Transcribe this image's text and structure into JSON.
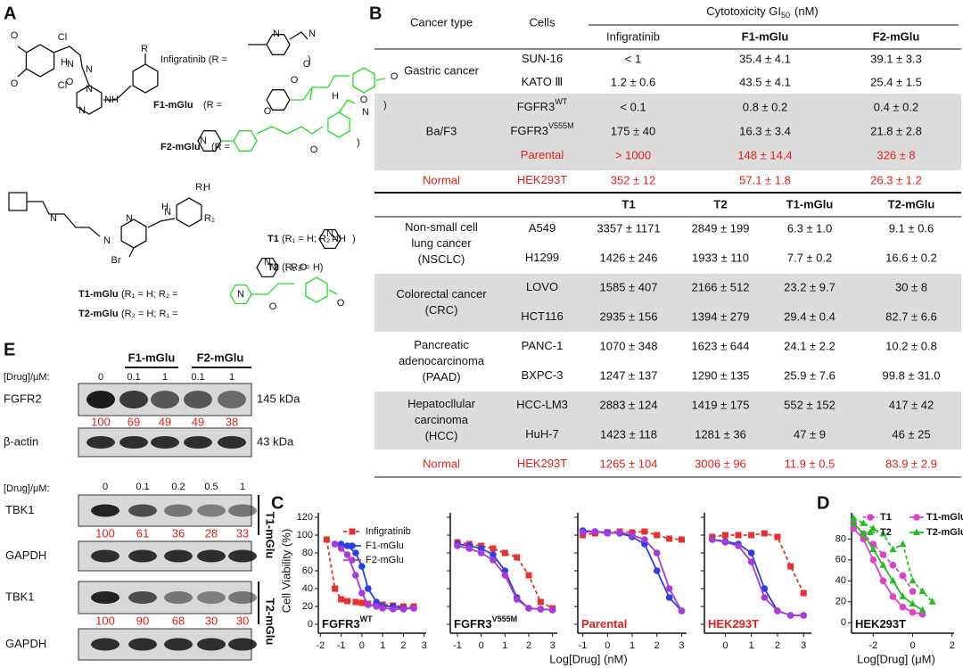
{
  "panel_labels": [
    "A",
    "B",
    "C",
    "D",
    "E"
  ],
  "structures": {
    "fragments": [
      {
        "text": "Infigratinib (R =",
        "bold": false
      },
      {
        "text": ")",
        "bold": false
      },
      {
        "text": "F1-mGlu",
        "bold": true
      },
      {
        "text": "(R =",
        "bold": false
      },
      {
        "text": ")",
        "bold": false
      },
      {
        "text": "F2-mGlu",
        "bold": true
      },
      {
        "text": "(R =",
        "bold": false
      },
      {
        "text": ")",
        "bold": false
      },
      {
        "text": "T1",
        "bold": true
      },
      {
        "text": "(R₁ = H; R₂ =",
        "bold": false
      },
      {
        "text": ")",
        "bold": false
      },
      {
        "text": "T2",
        "bold": true
      },
      {
        "text": "(R₁ =",
        "bold": false
      },
      {
        "text": "; R₂ = H)",
        "bold": false
      },
      {
        "text": "T1-mGlu",
        "bold": true
      },
      {
        "text": "(R₁ = H; R₂ =",
        "bold": false
      },
      {
        "text": "T2-mGlu",
        "bold": true
      },
      {
        "text": "(R₂ = H; R₁ =",
        "bold": false
      }
    ],
    "atoms": [
      "O",
      "Cl",
      "O",
      "Cl",
      "H",
      "N",
      "N",
      "O",
      "N",
      "N",
      "NH",
      "R",
      "N",
      "N",
      "O",
      "O",
      "O",
      "O",
      "O",
      "N",
      "O",
      "H",
      "N",
      "H",
      "N",
      "N",
      "N",
      "Br",
      "H",
      "N",
      "R₁",
      "R₂",
      "N",
      "NH",
      "N",
      "N",
      "N",
      "O",
      "O",
      "O"
    ]
  },
  "table": {
    "header": {
      "cancer_type": "Cancer type",
      "cells": "Cells",
      "cytotoxicity": "Cytotoxicity GI",
      "cytotoxicity_sub": "50",
      "unit": "(nM)"
    },
    "section1": {
      "columns": [
        "Infigratinib",
        "F1-mGlu",
        "F2-mGlu"
      ],
      "columns_bold": [
        false,
        true,
        true
      ],
      "groups": [
        {
          "name": [
            "Gastric cancer"
          ],
          "shaded": false,
          "red": false,
          "rows": [
            {
              "cell": "SUN-16",
              "values": [
                "< 1",
                "35.4 ± 4.1",
                "39.1 ± 3.3"
              ]
            },
            {
              "cell": "KATO Ⅲ",
              "values": [
                "1.2 ± 0.6",
                "43.5 ± 4.1",
                "25.4 ± 1.5"
              ]
            }
          ]
        },
        {
          "name": [
            "Ba/F3"
          ],
          "shaded": true,
          "red": false,
          "rows": [
            {
              "cell": "FGFR3",
              "cell_sup": "WT",
              "values": [
                "< 0.1",
                "0.8 ± 0.2",
                "0.4 ± 0.2"
              ]
            },
            {
              "cell": "FGFR3",
              "cell_sup": "V555M",
              "values": [
                "175 ± 40",
                "16.3 ± 3.4",
                "21.8 ± 2.8"
              ]
            },
            {
              "cell": "Parental",
              "red": true,
              "values": [
                "> 1000",
                "148 ± 14.4",
                "326 ± 8"
              ]
            }
          ]
        },
        {
          "name": [
            "Normal"
          ],
          "shaded": false,
          "red": true,
          "rows": [
            {
              "cell": "HEK293T",
              "red": true,
              "values": [
                "352 ± 12",
                "57.1 ± 1.8",
                "26.3 ± 1.2"
              ]
            }
          ]
        }
      ]
    },
    "section2": {
      "columns": [
        "T1",
        "T2",
        "T1-mGlu",
        "T2-mGlu"
      ],
      "columns_bold": [
        true,
        true,
        true,
        true
      ],
      "groups": [
        {
          "name": [
            "Non-small cell",
            "lung cancer",
            "(NSCLC)"
          ],
          "shaded": false,
          "red": false,
          "rows": [
            {
              "cell": "A549",
              "values": [
                "3357 ± 1171",
                "2849 ± 199",
                "6.3 ± 1.0",
                "9.1 ± 0.6"
              ]
            },
            {
              "cell": "H1299",
              "values": [
                "1426 ± 246",
                "1933 ± 110",
                "7.7 ± 0.2",
                "16.6 ± 0.2"
              ]
            }
          ]
        },
        {
          "name": [
            "Colorectal cancer",
            "(CRC)"
          ],
          "shaded": true,
          "red": false,
          "rows": [
            {
              "cell": "LOVO",
              "values": [
                "1585 ± 407",
                "2166 ± 512",
                "23.2 ± 9.7",
                "30 ± 8"
              ]
            },
            {
              "cell": "HCT116",
              "values": [
                "2935 ± 156",
                "1394 ± 279",
                "29.4 ± 0.4",
                "82.7 ± 6.6"
              ]
            }
          ]
        },
        {
          "name": [
            "Pancreatic",
            "adenocarcinoma",
            "(PAAD)"
          ],
          "shaded": false,
          "red": false,
          "rows": [
            {
              "cell": "PANC-1",
              "values": [
                "1070 ± 348",
                "1623 ± 644",
                "24.1 ± 2.2",
                "10.2 ± 0.8"
              ]
            },
            {
              "cell": "BXPC-3",
              "values": [
                "1247 ± 137",
                "1290 ± 135",
                "25.9 ± 7.6",
                "99.8 ± 31.0"
              ]
            }
          ]
        },
        {
          "name": [
            "Hepatocllular",
            "carcinoma",
            "(HCC)"
          ],
          "shaded": true,
          "red": false,
          "rows": [
            {
              "cell": "HCC-LM3",
              "values": [
                "2883 ± 124",
                "1419 ± 175",
                "552 ± 152",
                "417 ± 42"
              ]
            },
            {
              "cell": "HuH-7",
              "values": [
                "1423 ± 118",
                "1281 ± 36",
                "47 ± 9",
                "46 ± 25"
              ]
            }
          ]
        },
        {
          "name": [
            "Normal"
          ],
          "shaded": false,
          "red": true,
          "rows": [
            {
              "cell": "HEK293T",
              "red": true,
              "values": [
                "1265 ± 104",
                "3006 ± 96",
                "11.9 ± 0.5",
                "83.9 ± 2.9"
              ]
            }
          ]
        }
      ]
    }
  },
  "viability": {
    "y_label": "Cell Viability (%)",
    "x_label": "Log[Drug] (nM)",
    "ylim": [
      -10,
      125
    ],
    "yticks": [
      0,
      20,
      40,
      60,
      80,
      100,
      120
    ],
    "legend": [
      {
        "name": "Infigratinib",
        "color": "#e83030",
        "dashed": true,
        "marker": "square"
      },
      {
        "name": "F1-mGlu",
        "color": "#2a3ee8",
        "dashed": false,
        "marker": "circle"
      },
      {
        "name": "F2-mGlu",
        "color": "#a83ad8",
        "dashed": false,
        "marker": "circle"
      }
    ],
    "plots": [
      {
        "label": "FGFR3",
        "label_sup": "WT",
        "red": false,
        "xlim": [
          -2.1,
          3.1
        ],
        "xticks": [
          -2,
          -1,
          0,
          1,
          2,
          3
        ],
        "x": [
          -1.7,
          -1.3,
          -1,
          -0.7,
          -0.3,
          0,
          0.3,
          0.7,
          1,
          1.5,
          2,
          2.5
        ],
        "series": [
          {
            "values": [
              95,
              40,
              28,
              26,
              25,
              24,
              23,
              22,
              22,
              21,
              20,
              20
            ]
          },
          {
            "values": [
              null,
              90,
              90,
              88,
              80,
              65,
              40,
              25,
              20,
              20,
              18,
              18
            ]
          },
          {
            "values": [
              null,
              90,
              85,
              78,
              55,
              35,
              22,
              20,
              18,
              17,
              17,
              18
            ]
          }
        ]
      },
      {
        "label": "FGFR3",
        "label_sup": "V555M",
        "red": false,
        "xlim": [
          -1.3,
          3.2
        ],
        "xticks": [
          -1,
          0,
          1,
          2,
          3
        ],
        "x": [
          -1,
          -0.5,
          0,
          0.5,
          1,
          1.5,
          2,
          2.5,
          3
        ],
        "series": [
          {
            "values": [
              92,
              90,
              88,
              85,
              80,
              75,
              55,
              25,
              18
            ]
          },
          {
            "values": [
              90,
              88,
              85,
              78,
              60,
              30,
              18,
              17,
              16
            ]
          },
          {
            "values": [
              88,
              85,
              80,
              72,
              55,
              28,
              18,
              17,
              16
            ]
          }
        ]
      },
      {
        "label": "Parental",
        "red": true,
        "xlim": [
          -1.2,
          3.2
        ],
        "xticks": [
          -1,
          0,
          1,
          2,
          3
        ],
        "x": [
          -1,
          -0.5,
          0,
          0.5,
          1,
          1.5,
          2,
          2.5,
          3
        ],
        "series": [
          {
            "values": [
              100,
              102,
              103,
              104,
              103,
              104,
              100,
              96,
              95
            ]
          },
          {
            "values": [
              105,
              104,
              103,
              102,
              98,
              90,
              60,
              30,
              15
            ]
          },
          {
            "values": [
              103,
              104,
              102,
              103,
              100,
              95,
              80,
              40,
              15
            ]
          }
        ]
      },
      {
        "label": "HEK293T",
        "red": true,
        "xlim": [
          -0.8,
          3.3
        ],
        "xticks": [
          0,
          1,
          2,
          3
        ],
        "x": [
          -0.5,
          0,
          0.5,
          1,
          1.5,
          2,
          2.5,
          3
        ],
        "series": [
          {
            "values": [
              98,
              100,
              100,
              100,
              102,
              98,
              65,
              35
            ]
          },
          {
            "values": [
              95,
              93,
              90,
              80,
              40,
              15,
              10,
              10
            ]
          },
          {
            "values": [
              95,
              92,
              88,
              70,
              30,
              15,
              10,
              10
            ]
          }
        ]
      }
    ]
  },
  "dose": {
    "label": "HEK293T",
    "x_label": "Log[Drug] (μM)",
    "xlim": [
      -3.1,
      2.1
    ],
    "xticks": [
      -2,
      0,
      2
    ],
    "ylim": [
      -10,
      105
    ],
    "yticks": [
      0,
      20,
      40,
      60,
      80
    ],
    "x": [
      -3,
      -2.5,
      -2,
      -1.5,
      -1,
      -0.5,
      0,
      0.5,
      1
    ],
    "series": [
      {
        "name": "T1",
        "color": "#e040c8",
        "dashed": true,
        "marker": "circle",
        "values": [
          95,
          85,
          75,
          65,
          55,
          45,
          30,
          null,
          null
        ]
      },
      {
        "name": "T2",
        "color": "#22bb22",
        "dashed": true,
        "marker": "triangle",
        "values": [
          100,
          95,
          90,
          85,
          70,
          75,
          40,
          30,
          20
        ]
      },
      {
        "name": "T1-mGlu",
        "color": "#e040c8",
        "dashed": false,
        "marker": "circle",
        "values": [
          90,
          80,
          60,
          40,
          25,
          15,
          10,
          8,
          null
        ]
      },
      {
        "name": "T2-mGlu",
        "color": "#22bb22",
        "dashed": false,
        "marker": "triangle",
        "values": [
          95,
          85,
          70,
          55,
          40,
          25,
          18,
          12,
          null
        ]
      }
    ]
  },
  "blots": {
    "top": {
      "drug_label": "[Drug]/μM:",
      "groups": [
        "F1-mGlu",
        "F2-mGlu"
      ],
      "doses": [
        0,
        0.1,
        1,
        0.1,
        1
      ],
      "rows": [
        {
          "protein": "FGFR2",
          "size": "145 kDa",
          "quant": [
            100,
            69,
            49,
            49,
            38
          ]
        },
        {
          "protein": "β-actin",
          "size": "43 kDa"
        }
      ]
    },
    "bottom": {
      "drug_label": "[Drug]/μM:",
      "doses": [
        0,
        0.1,
        0.2,
        0.5,
        1
      ],
      "sets": [
        {
          "compound": "T1-mGlu",
          "rows": [
            {
              "protein": "TBK1",
              "quant": [
                100,
                61,
                36,
                28,
                33
              ]
            },
            {
              "protein": "GAPDH"
            }
          ]
        },
        {
          "compound": "T2-mGlu",
          "rows": [
            {
              "protein": "TBK1",
              "quant": [
                100,
                90,
                68,
                30,
                30
              ]
            },
            {
              "protein": "GAPDH"
            }
          ]
        }
      ]
    }
  }
}
